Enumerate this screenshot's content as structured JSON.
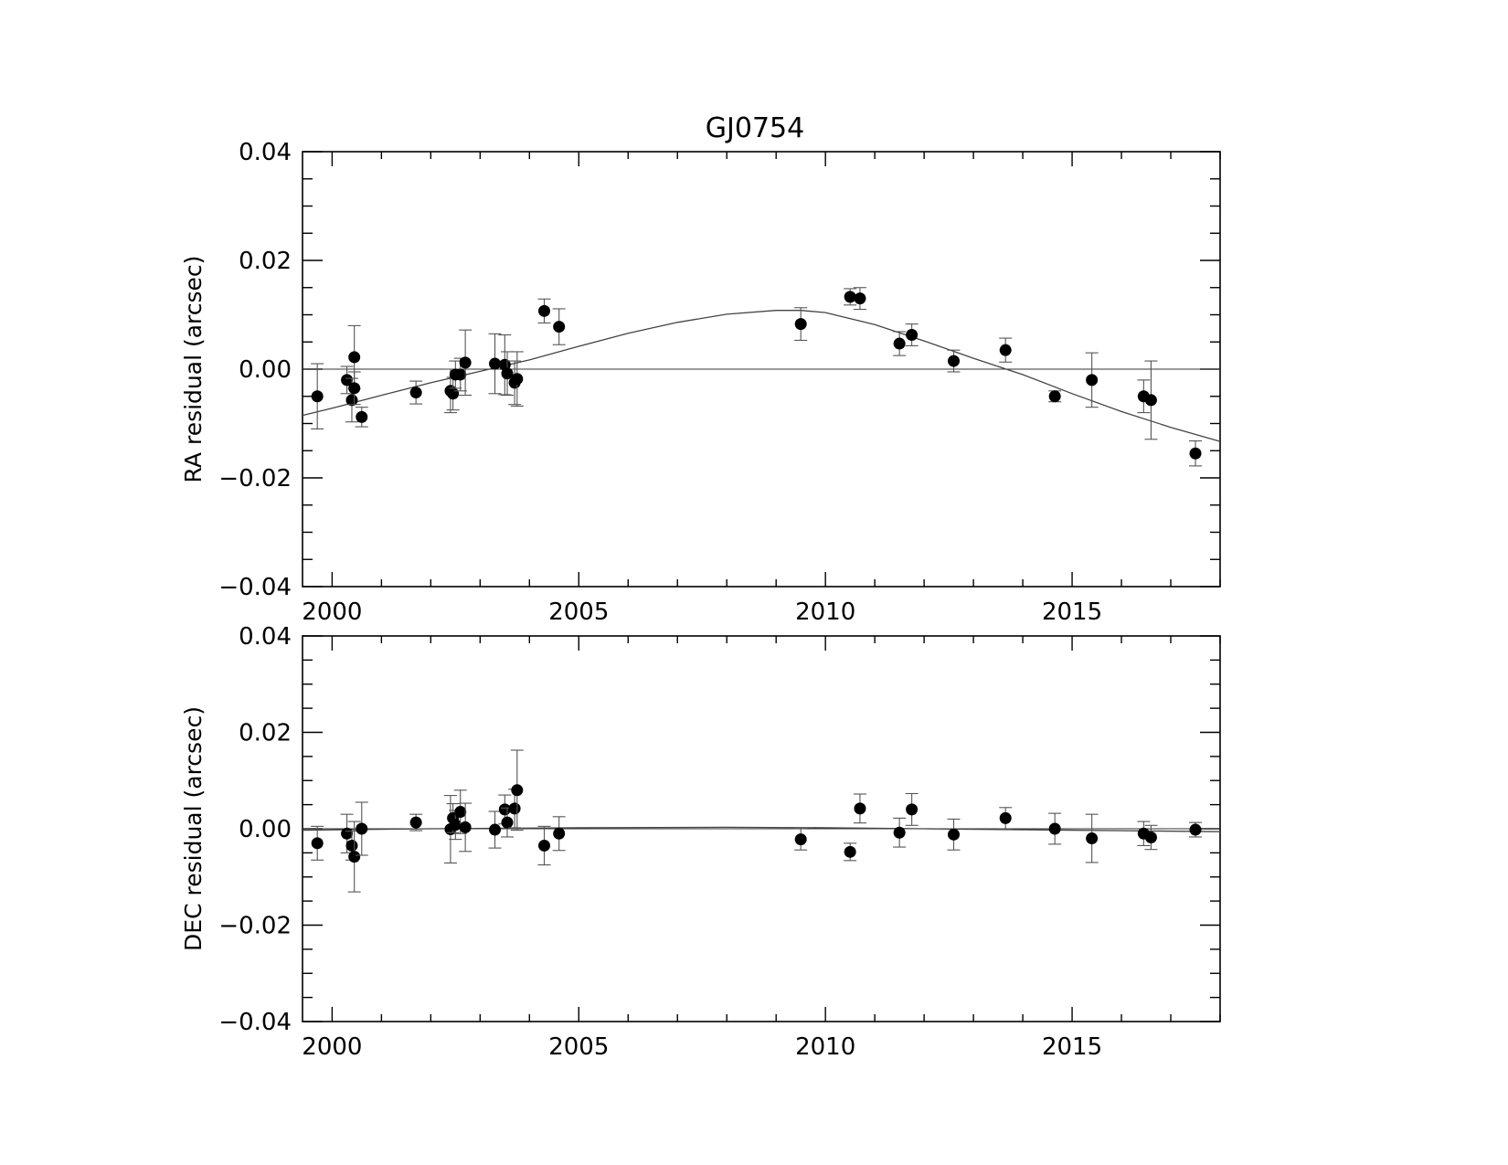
{
  "title": "GJ0754",
  "chart_data": [
    {
      "type": "scatter",
      "panel": "top",
      "ylabel": "RA residual (arcsec)",
      "xlabel": "",
      "xlim": [
        1999.4,
        2018.0
      ],
      "ylim": [
        -0.04,
        0.04
      ],
      "xticks": [
        2000,
        2005,
        2010,
        2015
      ],
      "xtick_labels": [
        "2000",
        "2005",
        "2010",
        "2015"
      ],
      "yticks": [
        -0.04,
        -0.02,
        0.0,
        0.02,
        0.04
      ],
      "ytick_labels": [
        "−0.04",
        "−0.02",
        "0.00",
        "0.02",
        "0.04"
      ],
      "grid": false,
      "reference_line": 0.0,
      "model_curve": {
        "x": [
          1999.4,
          2000,
          2001,
          2002,
          2003,
          2004,
          2005,
          2006,
          2007,
          2008,
          2009,
          2009.5,
          2010,
          2011,
          2012,
          2013,
          2014,
          2015,
          2016,
          2017,
          2018
        ],
        "y": [
          -0.0085,
          -0.0072,
          -0.0048,
          -0.0025,
          -0.0004,
          0.0017,
          0.0042,
          0.0066,
          0.0086,
          0.0101,
          0.0108,
          0.0108,
          0.0104,
          0.0082,
          0.0052,
          0.002,
          -0.001,
          -0.0045,
          -0.0078,
          -0.0107,
          -0.0133
        ]
      },
      "points": [
        {
          "x": 1999.7,
          "y": -0.005,
          "err": 0.006
        },
        {
          "x": 2000.3,
          "y": -0.002,
          "err": 0.0025
        },
        {
          "x": 2000.4,
          "y": -0.0057,
          "err": 0.004
        },
        {
          "x": 2000.45,
          "y": 0.0022,
          "err": 0.0058
        },
        {
          "x": 2000.45,
          "y": -0.0035,
          "err": 0.003
        },
        {
          "x": 2000.6,
          "y": -0.0088,
          "err": 0.0018
        },
        {
          "x": 2001.7,
          "y": -0.0043,
          "err": 0.0021
        },
        {
          "x": 2002.4,
          "y": -0.004,
          "err": 0.004
        },
        {
          "x": 2002.45,
          "y": -0.0045,
          "err": 0.003
        },
        {
          "x": 2002.5,
          "y": -0.001,
          "err": 0.0025
        },
        {
          "x": 2002.6,
          "y": -0.001,
          "err": 0.003
        },
        {
          "x": 2002.7,
          "y": 0.0012,
          "err": 0.006
        },
        {
          "x": 2003.3,
          "y": 0.001,
          "err": 0.0055
        },
        {
          "x": 2003.5,
          "y": 0.0008,
          "err": 0.0055
        },
        {
          "x": 2003.55,
          "y": -0.0008,
          "err": 0.004
        },
        {
          "x": 2003.7,
          "y": -0.0025,
          "err": 0.004
        },
        {
          "x": 2003.75,
          "y": -0.0018,
          "err": 0.005
        },
        {
          "x": 2004.3,
          "y": 0.0107,
          "err": 0.0022
        },
        {
          "x": 2004.6,
          "y": 0.0078,
          "err": 0.0033
        },
        {
          "x": 2009.5,
          "y": 0.0083,
          "err": 0.003
        },
        {
          "x": 2010.5,
          "y": 0.0133,
          "err": 0.0015
        },
        {
          "x": 2010.7,
          "y": 0.013,
          "err": 0.002
        },
        {
          "x": 2011.5,
          "y": 0.0047,
          "err": 0.0022
        },
        {
          "x": 2011.75,
          "y": 0.0063,
          "err": 0.002
        },
        {
          "x": 2012.6,
          "y": 0.0015,
          "err": 0.002
        },
        {
          "x": 2013.65,
          "y": 0.0035,
          "err": 0.0022
        },
        {
          "x": 2014.65,
          "y": -0.005,
          "err": 0.001
        },
        {
          "x": 2015.4,
          "y": -0.002,
          "err": 0.005
        },
        {
          "x": 2016.45,
          "y": -0.005,
          "err": 0.003
        },
        {
          "x": 2016.6,
          "y": -0.0057,
          "err": 0.0072
        },
        {
          "x": 2017.5,
          "y": -0.0155,
          "err": 0.0023
        }
      ]
    },
    {
      "type": "scatter",
      "panel": "bottom",
      "ylabel": "DEC residual (arcsec)",
      "xlabel": "",
      "xlim": [
        1999.4,
        2018.0
      ],
      "ylim": [
        -0.04,
        0.04
      ],
      "xticks": [
        2000,
        2005,
        2010,
        2015
      ],
      "xtick_labels": [
        "2000",
        "2005",
        "2010",
        "2015"
      ],
      "yticks": [
        -0.04,
        -0.02,
        0.0,
        0.02,
        0.04
      ],
      "ytick_labels": [
        "−0.04",
        "−0.02",
        "0.00",
        "0.02",
        "0.04"
      ],
      "grid": false,
      "reference_line": 0.0,
      "model_curve": {
        "x": [
          1999.4,
          2002,
          2005,
          2008,
          2010,
          2012,
          2014,
          2016,
          2018
        ],
        "y": [
          -0.0003,
          0.0,
          0.0002,
          0.0003,
          0.0002,
          0.0,
          -0.0002,
          -0.0004,
          -0.0006
        ]
      },
      "points": [
        {
          "x": 1999.7,
          "y": -0.003,
          "err": 0.0035
        },
        {
          "x": 2000.3,
          "y": -0.001,
          "err": 0.004
        },
        {
          "x": 2000.4,
          "y": -0.0035,
          "err": 0.003
        },
        {
          "x": 2000.45,
          "y": -0.0058,
          "err": 0.0073
        },
        {
          "x": 2000.6,
          "y": 0.0,
          "err": 0.0055
        },
        {
          "x": 2001.7,
          "y": 0.0013,
          "err": 0.0017
        },
        {
          "x": 2002.4,
          "y": -0.0001,
          "err": 0.007
        },
        {
          "x": 2002.45,
          "y": 0.0022,
          "err": 0.003
        },
        {
          "x": 2002.5,
          "y": 0.0008,
          "err": 0.003
        },
        {
          "x": 2002.6,
          "y": 0.0035,
          "err": 0.0045
        },
        {
          "x": 2002.7,
          "y": 0.0003,
          "err": 0.005
        },
        {
          "x": 2003.3,
          "y": -0.0002,
          "err": 0.0038
        },
        {
          "x": 2003.5,
          "y": 0.004,
          "err": 0.003
        },
        {
          "x": 2003.55,
          "y": 0.0013,
          "err": 0.003
        },
        {
          "x": 2003.7,
          "y": 0.0042,
          "err": 0.004
        },
        {
          "x": 2003.75,
          "y": 0.008,
          "err": 0.0083
        },
        {
          "x": 2004.3,
          "y": -0.0035,
          "err": 0.004
        },
        {
          "x": 2004.6,
          "y": -0.001,
          "err": 0.0035
        },
        {
          "x": 2009.5,
          "y": -0.0022,
          "err": 0.0022
        },
        {
          "x": 2010.5,
          "y": -0.0048,
          "err": 0.0018
        },
        {
          "x": 2010.7,
          "y": 0.0042,
          "err": 0.003
        },
        {
          "x": 2011.5,
          "y": -0.0008,
          "err": 0.003
        },
        {
          "x": 2011.75,
          "y": 0.004,
          "err": 0.0033
        },
        {
          "x": 2012.6,
          "y": -0.0012,
          "err": 0.0032
        },
        {
          "x": 2013.65,
          "y": 0.0022,
          "err": 0.0022
        },
        {
          "x": 2014.65,
          "y": 0.0,
          "err": 0.0032
        },
        {
          "x": 2015.4,
          "y": -0.002,
          "err": 0.005
        },
        {
          "x": 2016.45,
          "y": -0.001,
          "err": 0.0025
        },
        {
          "x": 2016.6,
          "y": -0.0018,
          "err": 0.0025
        },
        {
          "x": 2017.5,
          "y": -0.0002,
          "err": 0.0015
        }
      ]
    }
  ]
}
